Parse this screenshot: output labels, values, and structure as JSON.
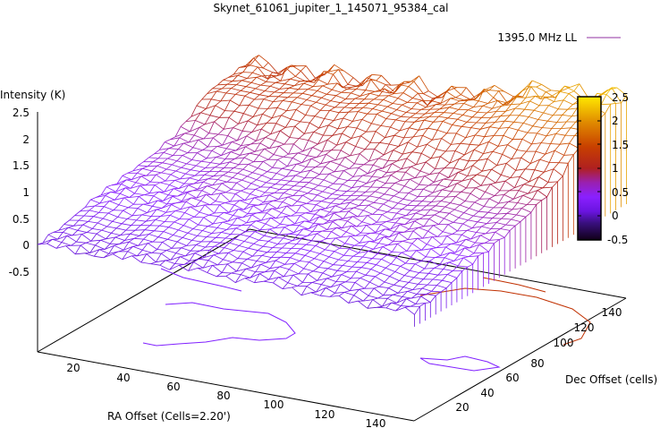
{
  "chart_data": {
    "type": "heatmap",
    "render": "3d-surface",
    "title": "Skynet_61061_jupiter_1_145071_95384_cal",
    "legend": {
      "label": "1395.0 MHz LL",
      "placement": "top-right"
    },
    "xlabel": "RA Offset (Cells=2.20')",
    "ylabel": "Dec Offset (cells)",
    "zlabel": "Intensity (K)",
    "xlim": [
      0,
      150
    ],
    "ylim": [
      0,
      150
    ],
    "zlim": [
      -0.5,
      2.5
    ],
    "x_ticks": [
      "20",
      "40",
      "60",
      "80",
      "100",
      "120",
      "140"
    ],
    "y_ticks": [
      "20",
      "40",
      "60",
      "80",
      "100",
      "120",
      "140"
    ],
    "z_ticks": [
      "2.5",
      "2",
      "1.5",
      "1",
      "0.5",
      "0",
      "-0.5"
    ],
    "colorbar": {
      "range": [
        -0.5,
        2.5
      ],
      "ticks": [
        "2.5",
        "2",
        "1.5",
        "1",
        "0.5",
        "0",
        "-0.5"
      ]
    },
    "grid_x": [
      0,
      20,
      40,
      60,
      80,
      100,
      120,
      140
    ],
    "grid_y": [
      0,
      20,
      40,
      60,
      80,
      100,
      120,
      140
    ],
    "z_estimated": [
      [
        0.0,
        0.0,
        0.05,
        0.05,
        0.05,
        0.05,
        0.0,
        0.0
      ],
      [
        0.1,
        0.15,
        0.2,
        0.2,
        0.25,
        0.25,
        0.2,
        0.1
      ],
      [
        0.3,
        0.35,
        0.4,
        0.35,
        0.4,
        0.45,
        0.4,
        0.35
      ],
      [
        0.4,
        0.45,
        0.5,
        0.45,
        0.5,
        0.5,
        0.55,
        0.5
      ],
      [
        0.5,
        0.55,
        0.6,
        0.55,
        0.6,
        0.65,
        0.7,
        0.7
      ],
      [
        0.7,
        0.75,
        0.8,
        0.8,
        0.85,
        0.9,
        1.0,
        1.0
      ],
      [
        1.2,
        1.3,
        1.3,
        1.35,
        1.4,
        1.5,
        1.6,
        1.7
      ],
      [
        1.3,
        1.4,
        1.45,
        1.5,
        1.5,
        1.7,
        2.0,
        2.1
      ]
    ],
    "colors": {
      "low": "#000000",
      "mid_low": "#8020ff",
      "mid": "#b02020",
      "high": "#ffe000"
    }
  }
}
